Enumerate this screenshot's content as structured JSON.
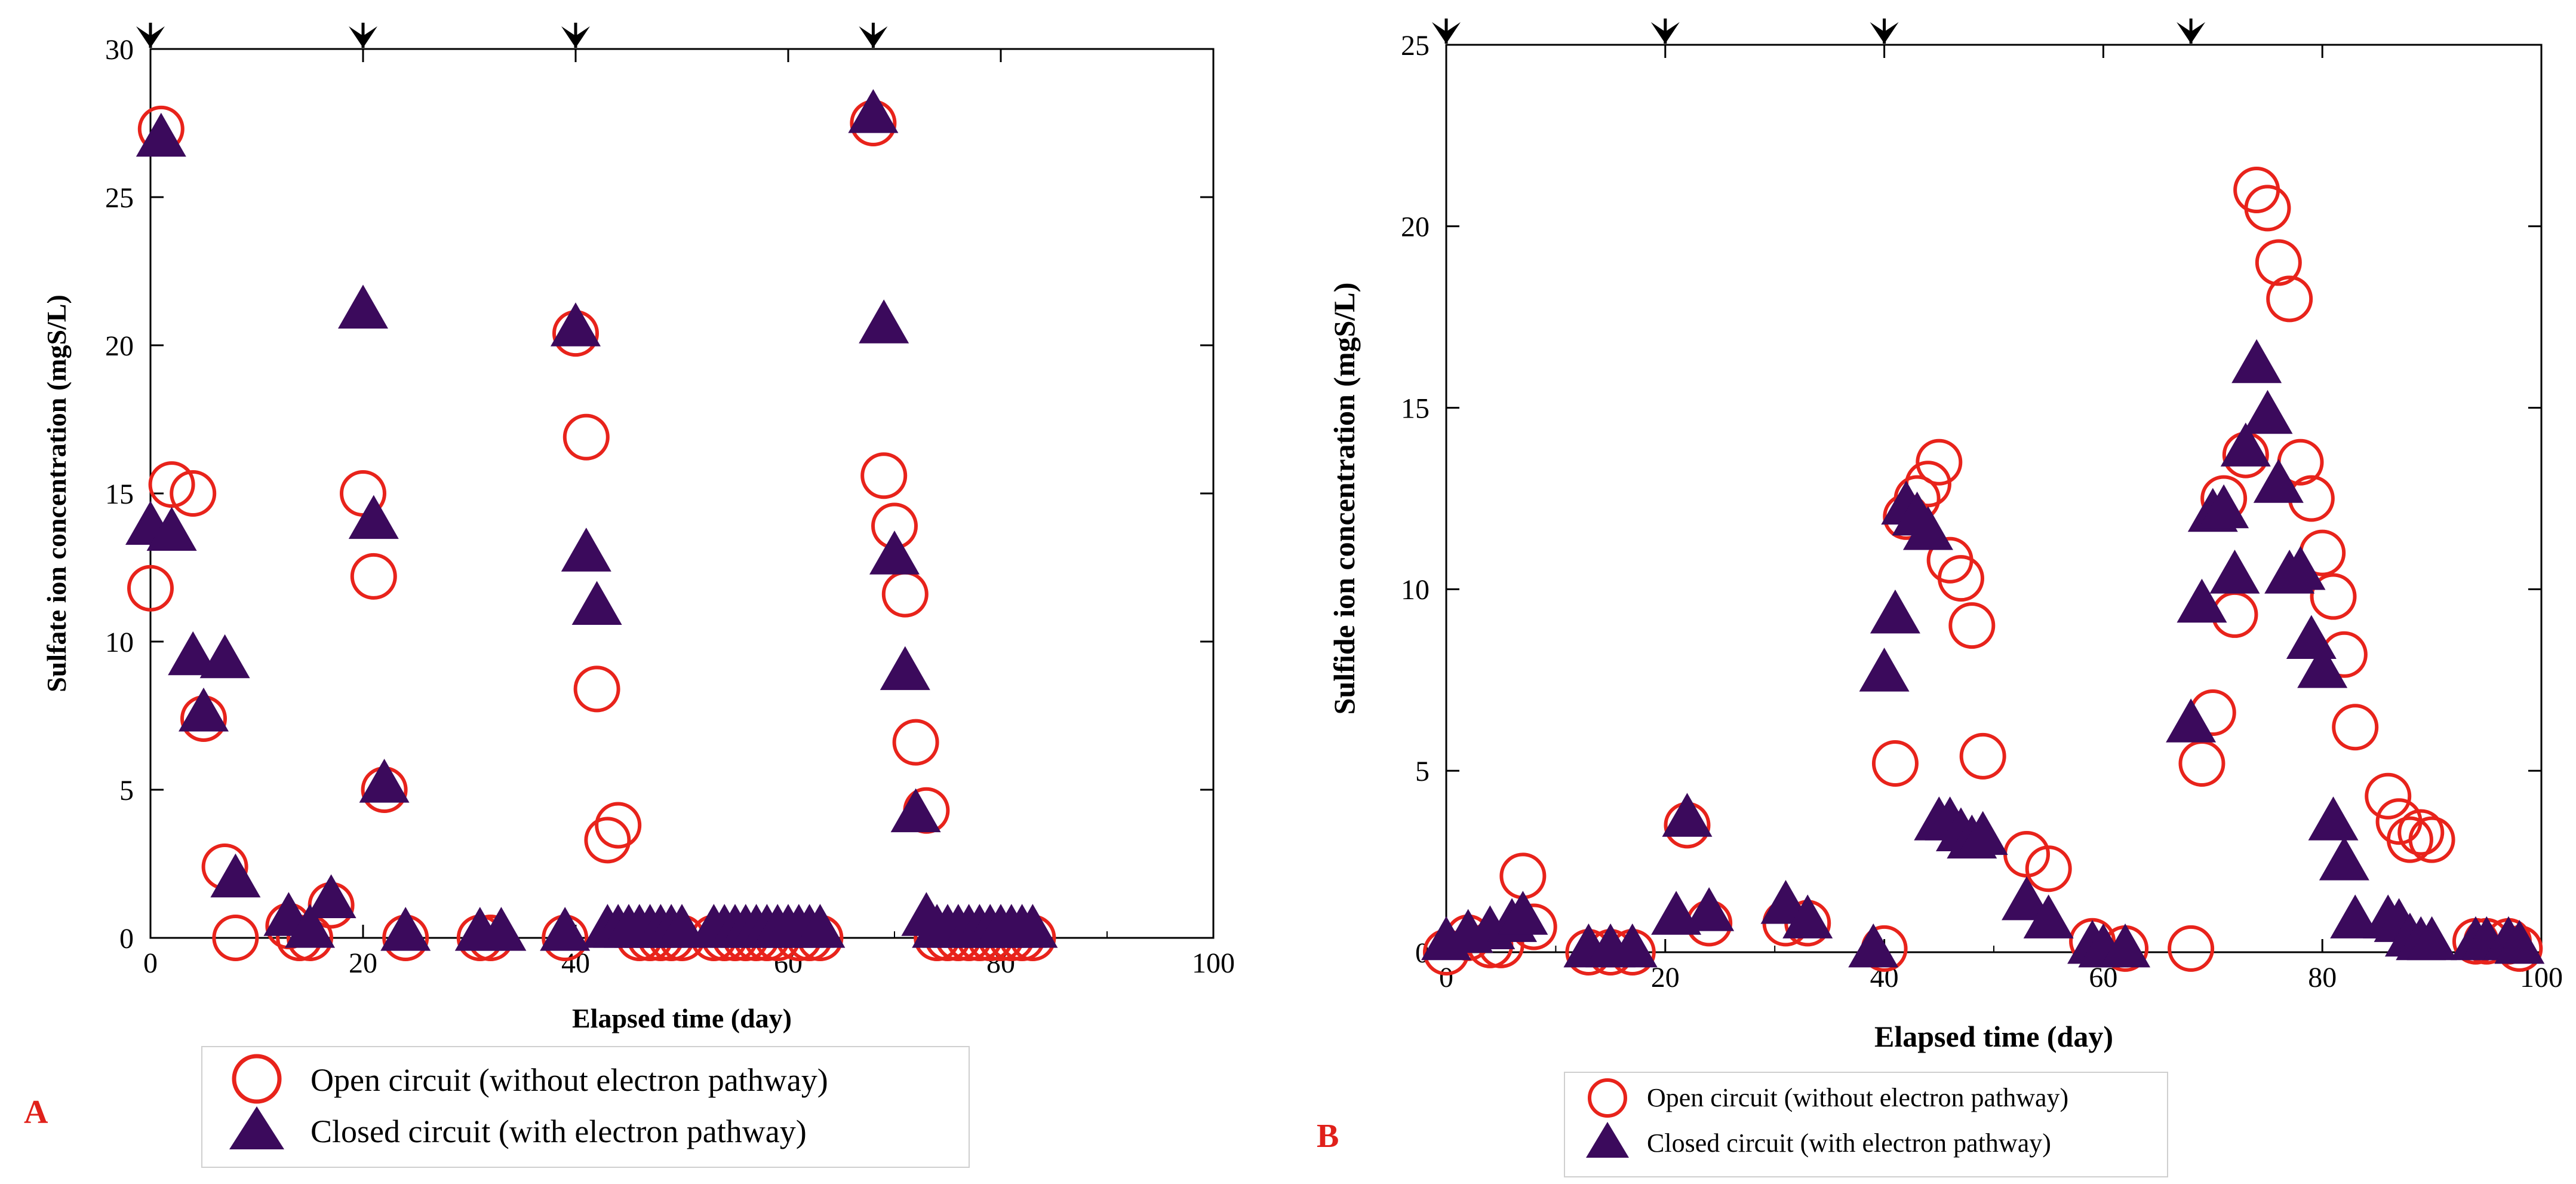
{
  "colors": {
    "open": "#e8231b",
    "closed": "#3b0a5c",
    "axis": "#000000",
    "panel_letter": "#e0201a"
  },
  "chart_data": [
    {
      "type": "scatter",
      "panel_label": "A",
      "xlabel": "Elapsed time (day)",
      "ylabel": "Sulfate ion concentration (mgS/L)",
      "xlim": [
        0,
        100
      ],
      "ylim": [
        0,
        30
      ],
      "xticks": [
        "0",
        "20",
        "40",
        "60",
        "80",
        "100"
      ],
      "yticks": [
        "0",
        "5",
        "10",
        "15",
        "20",
        "25",
        "30"
      ],
      "xtick_values": [
        0,
        20,
        40,
        60,
        80,
        100
      ],
      "ytick_values": [
        0,
        5,
        10,
        15,
        20,
        25,
        30
      ],
      "arrows_at_x": [
        0,
        20,
        40,
        68
      ],
      "grid": false,
      "legend_position": "below",
      "series": [
        {
          "name": "Open circuit (without electron pathway)",
          "marker": "circle",
          "x": [
            0,
            1,
            2,
            4,
            5,
            7,
            8,
            13,
            14,
            15,
            17,
            20,
            21,
            22,
            24,
            31,
            32,
            39,
            40,
            41,
            42,
            43,
            44,
            46,
            47,
            48,
            49,
            50,
            53,
            54,
            55,
            56,
            57,
            58,
            59,
            61,
            62,
            63,
            68,
            69,
            70,
            71,
            72,
            73,
            74,
            75,
            76,
            77,
            78,
            79,
            80,
            81,
            82,
            83
          ],
          "y": [
            11.8,
            27.3,
            15.3,
            15,
            7.4,
            2.4,
            0,
            0.4,
            0,
            0,
            1.1,
            15,
            12.2,
            5,
            0,
            0,
            0,
            0,
            20.4,
            16.9,
            8.4,
            3.3,
            3.8,
            0,
            0,
            0,
            0,
            0,
            0,
            0,
            0,
            0,
            0,
            0,
            0,
            0,
            0,
            0,
            27.5,
            15.6,
            13.9,
            11.6,
            6.6,
            4.3,
            0,
            0,
            0,
            0,
            0,
            0,
            0,
            0,
            0,
            0
          ]
        },
        {
          "name": "Closed circuit (with electron pathway)",
          "marker": "triangle",
          "x": [
            1,
            0,
            2,
            4,
            5,
            7,
            8,
            13,
            15,
            17,
            20,
            21,
            22,
            24,
            31,
            33,
            39,
            40,
            41,
            42,
            43,
            44,
            45,
            46,
            47,
            48,
            49,
            50,
            53,
            54,
            55,
            56,
            57,
            58,
            59,
            60,
            61,
            62,
            63,
            68,
            69,
            70,
            71,
            72,
            73,
            74,
            75,
            76,
            77,
            78,
            79,
            80,
            81,
            82,
            83
          ],
          "y": [
            27,
            13.9,
            13.7,
            9.5,
            7.6,
            9.4,
            2,
            0.7,
            0.3,
            1.3,
            21.2,
            14.1,
            5.2,
            0.2,
            0.2,
            0.2,
            0.2,
            20.6,
            13,
            11.2,
            0.3,
            0.3,
            0.3,
            0.3,
            0.3,
            0.3,
            0.3,
            0.3,
            0.3,
            0.3,
            0.3,
            0.3,
            0.3,
            0.3,
            0.3,
            0.3,
            0.3,
            0.3,
            0.3,
            27.8,
            20.7,
            12.9,
            9,
            4.2,
            0.7,
            0.3,
            0.3,
            0.3,
            0.3,
            0.3,
            0.3,
            0.3,
            0.3,
            0.3,
            0.3
          ]
        }
      ]
    },
    {
      "type": "scatter",
      "panel_label": "B",
      "xlabel": "Elapsed time (day)",
      "ylabel": "Sulfide ion concentration (mgS/L)",
      "xlim": [
        0,
        100
      ],
      "ylim": [
        0,
        25
      ],
      "xticks": [
        "0",
        "20",
        "40",
        "60",
        "80",
        "100"
      ],
      "yticks": [
        "0",
        "5",
        "10",
        "15",
        "20",
        "25"
      ],
      "xtick_values": [
        0,
        20,
        40,
        60,
        80,
        100
      ],
      "ytick_values": [
        0,
        5,
        10,
        15,
        20,
        25
      ],
      "arrows_at_x": [
        0,
        20,
        40,
        68
      ],
      "grid": false,
      "legend_position": "below",
      "series": [
        {
          "name": "Open circuit (without electron pathway)",
          "marker": "circle",
          "x": [
            0,
            2,
            4,
            5,
            7,
            8,
            13,
            15,
            17,
            22,
            24,
            31,
            33,
            40,
            41,
            42,
            43,
            44,
            45,
            46,
            47,
            48,
            49,
            53,
            55,
            59,
            62,
            68,
            69,
            70,
            71,
            72,
            73,
            74,
            75,
            76,
            77,
            78,
            79,
            80,
            81,
            82,
            83,
            86,
            87,
            88,
            89,
            90,
            94,
            95,
            97,
            98
          ],
          "y": [
            0,
            0.4,
            0.2,
            0.2,
            2.1,
            0.7,
            0,
            0,
            0,
            3.5,
            0.8,
            0.8,
            0.8,
            0.1,
            5.2,
            12,
            12.5,
            12.9,
            13.5,
            10.8,
            10.3,
            9,
            5.4,
            2.7,
            2.3,
            0.3,
            0.1,
            0.1,
            5.2,
            6.6,
            12.5,
            9.3,
            13.7,
            21,
            20.5,
            19,
            18,
            13.5,
            12.5,
            11,
            9.8,
            8.2,
            6.2,
            4.3,
            3.6,
            3.1,
            3.3,
            3.1,
            0.3,
            0.3,
            0.3,
            0.1
          ]
        },
        {
          "name": "Closed circuit (with electron  pathway)",
          "marker": "triangle",
          "x": [
            0,
            2,
            4,
            6,
            7,
            13,
            15,
            17,
            21,
            22,
            24,
            31,
            33,
            39,
            40,
            41,
            42,
            43,
            44,
            45,
            46,
            47,
            48,
            49,
            53,
            55,
            59,
            60,
            62,
            68,
            69,
            70,
            71,
            72,
            73,
            74,
            75,
            76,
            77,
            78,
            79,
            80,
            81,
            82,
            83,
            86,
            87,
            88,
            89,
            90,
            94,
            95,
            97,
            98
          ],
          "y": [
            0.3,
            0.5,
            0.6,
            0.8,
            1,
            0.1,
            0.1,
            0.1,
            1,
            3.7,
            1.1,
            1.3,
            0.9,
            0.1,
            7.7,
            9.3,
            12.3,
            12,
            11.6,
            3.6,
            3.6,
            3.3,
            3.1,
            3.2,
            1.4,
            0.9,
            0.2,
            0.1,
            0.1,
            6.3,
            9.6,
            12.1,
            12.2,
            10.4,
            13.9,
            16.2,
            14.8,
            12.9,
            10.4,
            10.5,
            8.6,
            7.8,
            3.6,
            2.5,
            0.9,
            0.9,
            0.8,
            0.4,
            0.3,
            0.3,
            0.3,
            0.3,
            0.3,
            0.2
          ]
        }
      ]
    }
  ]
}
